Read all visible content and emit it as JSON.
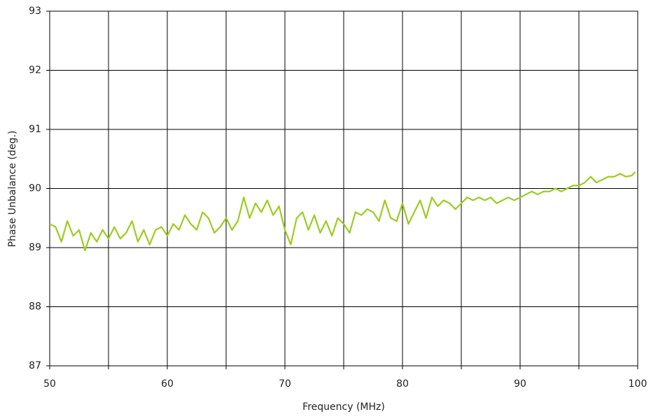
{
  "chart_data": {
    "type": "line",
    "xlabel": "Frequency (MHz)",
    "ylabel": "Phase Unbalance (deg.)",
    "xlim": [
      50,
      100
    ],
    "xticks": [
      50,
      60,
      70,
      80,
      90,
      100
    ],
    "ylim": [
      87,
      93
    ],
    "yticks": [
      87,
      88,
      89,
      90,
      91,
      92,
      93
    ],
    "xgrid": [
      55,
      60,
      65,
      70,
      75,
      80,
      85,
      90,
      95
    ],
    "grid": true,
    "x": [
      50,
      50.5,
      51,
      51.5,
      52,
      52.5,
      53,
      53.5,
      54,
      54.5,
      55,
      55.5,
      56,
      56.5,
      57,
      57.5,
      58,
      58.5,
      59,
      59.5,
      60,
      60.5,
      61,
      61.5,
      62,
      62.5,
      63,
      63.5,
      64,
      64.5,
      65,
      65.5,
      66,
      66.5,
      67,
      67.5,
      68,
      68.5,
      69,
      69.5,
      70,
      70.5,
      71,
      71.5,
      72,
      72.5,
      73,
      73.5,
      74,
      74.5,
      75,
      75.5,
      76,
      76.5,
      77,
      77.5,
      78,
      78.5,
      79,
      79.5,
      80,
      80.5,
      81,
      81.5,
      82,
      82.5,
      83,
      83.5,
      84,
      84.5,
      85,
      85.5,
      86,
      86.5,
      87,
      87.5,
      88,
      88.5,
      89,
      89.5,
      90,
      90.5,
      91,
      91.5,
      92,
      92.5,
      93,
      93.5,
      94,
      94.5,
      95,
      95.5,
      96,
      96.5,
      97,
      97.5,
      98,
      98.5,
      99,
      99.5,
      99.8
    ],
    "series": [
      {
        "color": "#9acd1e",
        "values": [
          89.4,
          89.35,
          89.1,
          89.45,
          89.2,
          89.3,
          88.95,
          89.25,
          89.1,
          89.3,
          89.15,
          89.35,
          89.15,
          89.25,
          89.45,
          89.1,
          89.3,
          89.05,
          89.3,
          89.35,
          89.2,
          89.4,
          89.3,
          89.55,
          89.4,
          89.3,
          89.6,
          89.5,
          89.25,
          89.35,
          89.5,
          89.3,
          89.45,
          89.85,
          89.5,
          89.75,
          89.6,
          89.8,
          89.55,
          89.7,
          89.3,
          89.05,
          89.5,
          89.6,
          89.3,
          89.55,
          89.25,
          89.45,
          89.2,
          89.5,
          89.4,
          89.25,
          89.6,
          89.55,
          89.65,
          89.6,
          89.45,
          89.8,
          89.5,
          89.45,
          89.75,
          89.4,
          89.6,
          89.8,
          89.5,
          89.85,
          89.7,
          89.8,
          89.75,
          89.65,
          89.75,
          89.85,
          89.8,
          89.85,
          89.8,
          89.85,
          89.75,
          89.8,
          89.85,
          89.8,
          89.85,
          89.9,
          89.95,
          89.9,
          89.95,
          89.95,
          90.0,
          89.95,
          90.0,
          90.05,
          90.05,
          90.1,
          90.2,
          90.1,
          90.15,
          90.2,
          90.2,
          90.25,
          90.2,
          90.22,
          90.28
        ]
      }
    ]
  }
}
